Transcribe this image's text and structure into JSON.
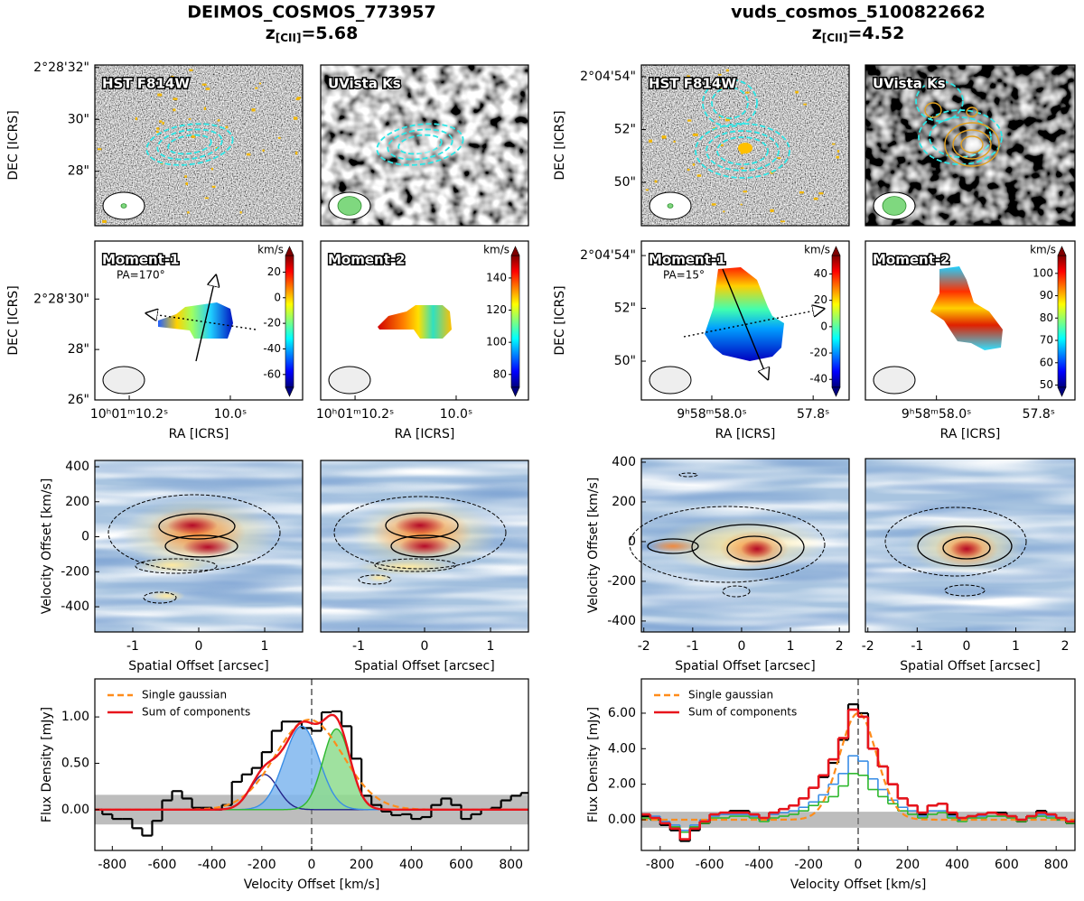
{
  "columns": [
    {
      "title": "DEIMOS_COSMOS_773957",
      "z": "z",
      "z_sub": "[CII]",
      "z_value": "=5.68"
    },
    {
      "title": "vuds_cosmos_5100822662",
      "z": "z",
      "z_sub": "[CII]",
      "z_value": "=4.52"
    }
  ],
  "chart_data": [
    {
      "type": "image",
      "label": "HST F814W",
      "ylabel": "DEC [ICRS]",
      "ylim": [
        25.9,
        32.1
      ],
      "yticks": [
        {
          "value": 32,
          "label": "2°28'32\""
        },
        {
          "value": 30,
          "label": "30\""
        },
        {
          "value": 28,
          "label": "28\""
        }
      ]
    },
    {
      "type": "image",
      "label": "UVista Ks"
    },
    {
      "type": "moment",
      "label": "Moment-1",
      "annotation": "PA=170°",
      "ylabel": "DEC [ICRS]",
      "xlabel": "RA [ICRS]",
      "xlim": [
        10.268,
        9.857
      ],
      "xticks": [
        {
          "value": 10.2,
          "label": "10ʰ01ᵐ10.2ˢ"
        },
        {
          "value": 10,
          "label": "10.0ˢ"
        }
      ],
      "ylim": [
        26,
        32.3
      ],
      "yticks": [
        {
          "value": 30,
          "label": "2°28'30\""
        },
        {
          "value": 28,
          "label": "28\""
        },
        {
          "value": 26,
          "label": "26\""
        }
      ],
      "colorbar": {
        "label": "km/s",
        "clim": [
          -70,
          33
        ],
        "ticks": [
          20,
          0,
          -20,
          -40,
          -60
        ]
      }
    },
    {
      "type": "moment",
      "label": "Moment-2",
      "xlabel": "RA [ICRS]",
      "xlim": [
        10.268,
        9.857
      ],
      "xticks": [
        {
          "value": 10.2,
          "label": "10ʰ01ᵐ10.2ˢ"
        },
        {
          "value": 10,
          "label": "10.0ˢ"
        }
      ],
      "colorbar": {
        "label": "km/s",
        "clim": [
          72,
          154
        ],
        "ticks": [
          140,
          120,
          100,
          80
        ]
      }
    },
    {
      "type": "pv",
      "ylabel": "Velocity Offset [km/s]",
      "xlabel": "Spatial Offset [arcsec]",
      "xlim": [
        -1.575,
        1.575
      ],
      "xticks": [
        -1,
        0,
        1
      ],
      "ylim": [
        -544,
        436
      ],
      "yticks": [
        400,
        200,
        0,
        -200,
        -400
      ]
    },
    {
      "type": "pv",
      "xlabel": "Spatial Offset [arcsec]",
      "xlim": [
        -1.575,
        1.575
      ],
      "xticks": [
        -1,
        0,
        1
      ]
    },
    {
      "type": "spectrum",
      "ylabel": "Flux Density [mJy]",
      "xlabel": "Velocity Offset [km/s]",
      "xlim": [
        -870,
        870
      ],
      "xticks": [
        -800,
        -600,
        -400,
        -200,
        0,
        200,
        400,
        600,
        800
      ],
      "ylim": [
        -0.44,
        1.41
      ],
      "yticks": [
        {
          "value": 0,
          "label": "0.00"
        },
        {
          "value": 0.5,
          "label": "0.50"
        },
        {
          "value": 1,
          "label": "1.00"
        }
      ],
      "noise_band": [
        -0.16,
        0.16
      ],
      "vline": 0,
      "x": [
        -860,
        -820,
        -780,
        -740,
        -700,
        -660,
        -620,
        -580,
        -540,
        -500,
        -460,
        -420,
        -380,
        -340,
        -300,
        -260,
        -220,
        -180,
        -140,
        -100,
        -60,
        -20,
        20,
        60,
        100,
        140,
        180,
        220,
        260,
        300,
        340,
        380,
        420,
        460,
        500,
        540,
        580,
        620,
        660,
        700,
        740,
        780,
        820,
        860
      ],
      "series": [
        {
          "color": "#000000",
          "values": [
            0.0,
            -0.05,
            -0.1,
            -0.1,
            -0.2,
            -0.28,
            -0.12,
            0.1,
            0.2,
            0.12,
            0.02,
            0.02,
            0.0,
            0.05,
            0.3,
            0.38,
            0.45,
            0.62,
            0.85,
            0.95,
            0.95,
            0.88,
            0.85,
            1.05,
            1.06,
            0.9,
            0.55,
            0.15,
            0.05,
            -0.02,
            -0.06,
            -0.05,
            -0.1,
            -0.08,
            0.05,
            0.12,
            0.05,
            -0.1,
            -0.05,
            0.0,
            0.02,
            0.1,
            0.15,
            0.18
          ]
        }
      ],
      "components": [
        {
          "color": "#23238a",
          "amplitude": 0.38,
          "center": -190,
          "sigma": 55
        },
        {
          "color": "#3a8ee6",
          "fill": "#7fb6ef",
          "amplitude": 0.9,
          "center": -40,
          "sigma": 70
        },
        {
          "color": "#2eb82e",
          "fill": "#8edc8e",
          "amplitude": 0.87,
          "center": 100,
          "sigma": 55
        }
      ],
      "single_gaussian": {
        "name": "Single gaussian",
        "color": "#ff8c1a",
        "amplitude": 0.97,
        "center": -10,
        "sigma": 135
      },
      "sum_of_components": {
        "name": "Sum of components",
        "color": "#e8141c"
      }
    },
    {
      "type": "image",
      "label": "HST F814W",
      "ylabel": "DEC [ICRS]",
      "ylim": [
        48.36,
        54.44
      ],
      "yticks": [
        {
          "value": 54,
          "label": "2°04'54\""
        },
        {
          "value": 52,
          "label": "52\""
        },
        {
          "value": 50,
          "label": "50\""
        }
      ]
    },
    {
      "type": "image",
      "label": "UVista Ks"
    },
    {
      "type": "moment",
      "label": "Moment-1",
      "annotation": "PA=15°",
      "ylabel": "DEC [ICRS]",
      "xlabel": "RA [ICRS]",
      "xlim": [
        58.139,
        57.729
      ],
      "xticks": [
        {
          "value": 58,
          "label": "9ʰ58ᵐ58.0ˢ"
        },
        {
          "value": 57.8,
          "label": "57.8ˢ"
        }
      ],
      "ylim": [
        48.53,
        54.55
      ],
      "yticks": [
        {
          "value": 54,
          "label": "2°04'54\""
        },
        {
          "value": 52,
          "label": "52\""
        },
        {
          "value": 50,
          "label": "50\""
        }
      ],
      "colorbar": {
        "label": "km/s",
        "clim": [
          -46,
          54
        ],
        "ticks": [
          40,
          20,
          0,
          -20,
          -40
        ]
      }
    },
    {
      "type": "moment",
      "label": "Moment-2",
      "xlabel": "RA [ICRS]",
      "xlim": [
        58.139,
        57.729
      ],
      "xticks": [
        {
          "value": 58,
          "label": "9ʰ58ᵐ58.0ˢ"
        },
        {
          "value": 57.8,
          "label": "57.8ˢ"
        }
      ],
      "colorbar": {
        "label": "km/s",
        "clim": [
          49,
          108
        ],
        "ticks": [
          100,
          90,
          80,
          70,
          60,
          50
        ]
      }
    },
    {
      "type": "pv",
      "ylabel": "Velocity Offset [km/s]",
      "xlabel": "Spatial Offset [arcsec]",
      "xlim": [
        -2.05,
        2.2
      ],
      "xticks": [
        -2,
        -1,
        0,
        1,
        2
      ],
      "ylim": [
        -455,
        418
      ],
      "yticks": [
        400,
        200,
        0,
        -200,
        -400
      ]
    },
    {
      "type": "pv",
      "xlabel": "Spatial Offset [arcsec]",
      "xlim": [
        -2.05,
        2.2
      ],
      "xticks": [
        -2,
        -1,
        0,
        1,
        2
      ]
    },
    {
      "type": "spectrum",
      "ylabel": "Flux Density [mJy]",
      "xlabel": "Velocity Offset [km/s]",
      "xlim": [
        -876,
        876
      ],
      "xticks": [
        -800,
        -600,
        -400,
        -200,
        0,
        200,
        400,
        600,
        800
      ],
      "ylim": [
        -1.73,
        7.93
      ],
      "yticks": [
        {
          "value": 0,
          "label": "0.00"
        },
        {
          "value": 2,
          "label": "2.00"
        },
        {
          "value": 4,
          "label": "4.00"
        },
        {
          "value": 6,
          "label": "6.00"
        }
      ],
      "noise_band": [
        -0.45,
        0.45
      ],
      "vline": 0,
      "x": [
        -860,
        -820,
        -780,
        -740,
        -700,
        -660,
        -620,
        -580,
        -540,
        -500,
        -460,
        -420,
        -380,
        -340,
        -300,
        -260,
        -220,
        -180,
        -140,
        -100,
        -60,
        -20,
        20,
        60,
        100,
        140,
        180,
        220,
        260,
        300,
        340,
        380,
        420,
        460,
        500,
        540,
        580,
        620,
        660,
        700,
        740,
        780,
        820,
        860
      ],
      "series": [
        {
          "color": "#000000",
          "values": [
            0.2,
            0.0,
            -0.3,
            -0.6,
            -1.2,
            -0.6,
            -0.2,
            0.3,
            0.4,
            0.5,
            0.5,
            0.3,
            0.0,
            0.4,
            0.6,
            0.8,
            1.2,
            1.8,
            2.4,
            3.2,
            4.5,
            6.5,
            6.0,
            4.0,
            3.0,
            2.0,
            1.2,
            0.8,
            0.3,
            0.8,
            0.9,
            0.3,
            0.0,
            0.2,
            0.3,
            0.4,
            0.4,
            0.2,
            -0.1,
            0.2,
            0.5,
            0.3,
            0.0,
            -0.2
          ]
        },
        {
          "color": "#3a8ee6",
          "values": [
            0.3,
            0.2,
            -0.1,
            -0.3,
            -0.6,
            -0.3,
            0.0,
            0.2,
            0.3,
            0.3,
            0.3,
            0.2,
            0.0,
            0.3,
            0.4,
            0.5,
            0.7,
            1.0,
            1.4,
            2.0,
            2.6,
            3.6,
            3.3,
            2.3,
            1.7,
            1.1,
            0.7,
            0.5,
            0.2,
            0.5,
            0.5,
            0.2,
            0.0,
            0.1,
            0.2,
            0.2,
            0.2,
            0.1,
            0.0,
            0.1,
            0.3,
            0.2,
            0.0,
            -0.1
          ]
        },
        {
          "color": "#2eb82e",
          "values": [
            0.1,
            0.0,
            -0.2,
            -0.4,
            -0.7,
            -0.4,
            -0.2,
            0.1,
            0.1,
            0.2,
            0.2,
            0.1,
            -0.1,
            0.1,
            0.2,
            0.3,
            0.5,
            0.8,
            1.0,
            1.3,
            1.9,
            2.6,
            2.5,
            1.7,
            1.3,
            0.9,
            0.5,
            0.3,
            0.1,
            0.3,
            0.4,
            0.1,
            -0.1,
            0.1,
            0.1,
            0.2,
            0.2,
            0.1,
            -0.1,
            0.1,
            0.2,
            0.1,
            0.0,
            -0.2
          ]
        }
      ],
      "single_gaussian": {
        "name": "Single gaussian",
        "color": "#ff8c1a",
        "amplitude": 6.0,
        "center": 0,
        "sigma": 75
      },
      "sum_of_components": {
        "name": "Sum of components",
        "color": "#e8141c",
        "values": [
          0.3,
          0.1,
          -0.2,
          -0.5,
          -1.1,
          -0.5,
          -0.1,
          0.3,
          0.4,
          0.4,
          0.4,
          0.3,
          0.1,
          0.4,
          0.6,
          0.8,
          1.2,
          1.8,
          2.5,
          3.4,
          4.6,
          6.2,
          5.8,
          4.0,
          3.0,
          2.0,
          1.2,
          0.8,
          0.4,
          0.8,
          0.9,
          0.4,
          0.1,
          0.2,
          0.3,
          0.4,
          0.3,
          0.2,
          0.0,
          0.2,
          0.4,
          0.3,
          0.1,
          -0.1
        ]
      }
    }
  ]
}
